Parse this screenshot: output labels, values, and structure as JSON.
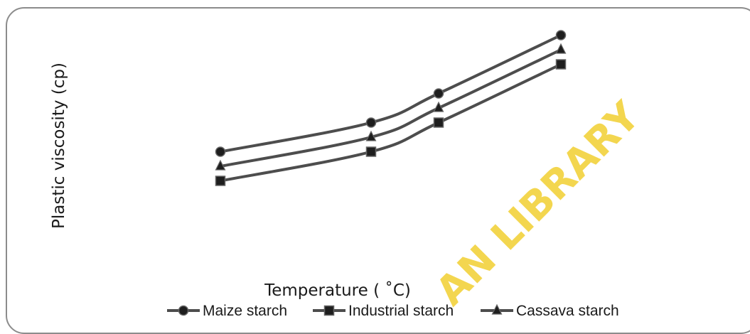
{
  "chart_data": {
    "type": "line",
    "title": "",
    "xlabel": "Temperature ( ˚C)",
    "ylabel": "Plastic viscosity (cp)",
    "x": [
      1,
      2,
      3,
      4
    ],
    "xlim": [
      0,
      5
    ],
    "ylim": [
      0,
      10
    ],
    "grid": false,
    "legend_position": "bottom",
    "series": [
      {
        "name": "Maize starch",
        "marker": "circle",
        "values": [
          3.5,
          4.5,
          5.5,
          7.5
        ]
      },
      {
        "name": "Industrial starch",
        "marker": "square",
        "values": [
          2.5,
          3.5,
          4.5,
          6.5
        ]
      },
      {
        "name": "Cassava starch",
        "marker": "triangle",
        "values": [
          3.0,
          4.0,
          5.0,
          7.0
        ]
      }
    ],
    "colors": {
      "line": "#4d4d4d",
      "marker": "#1e1e1e"
    }
  },
  "watermark": {
    "text": "AN LIBRARY",
    "color": "#f2d23c"
  }
}
